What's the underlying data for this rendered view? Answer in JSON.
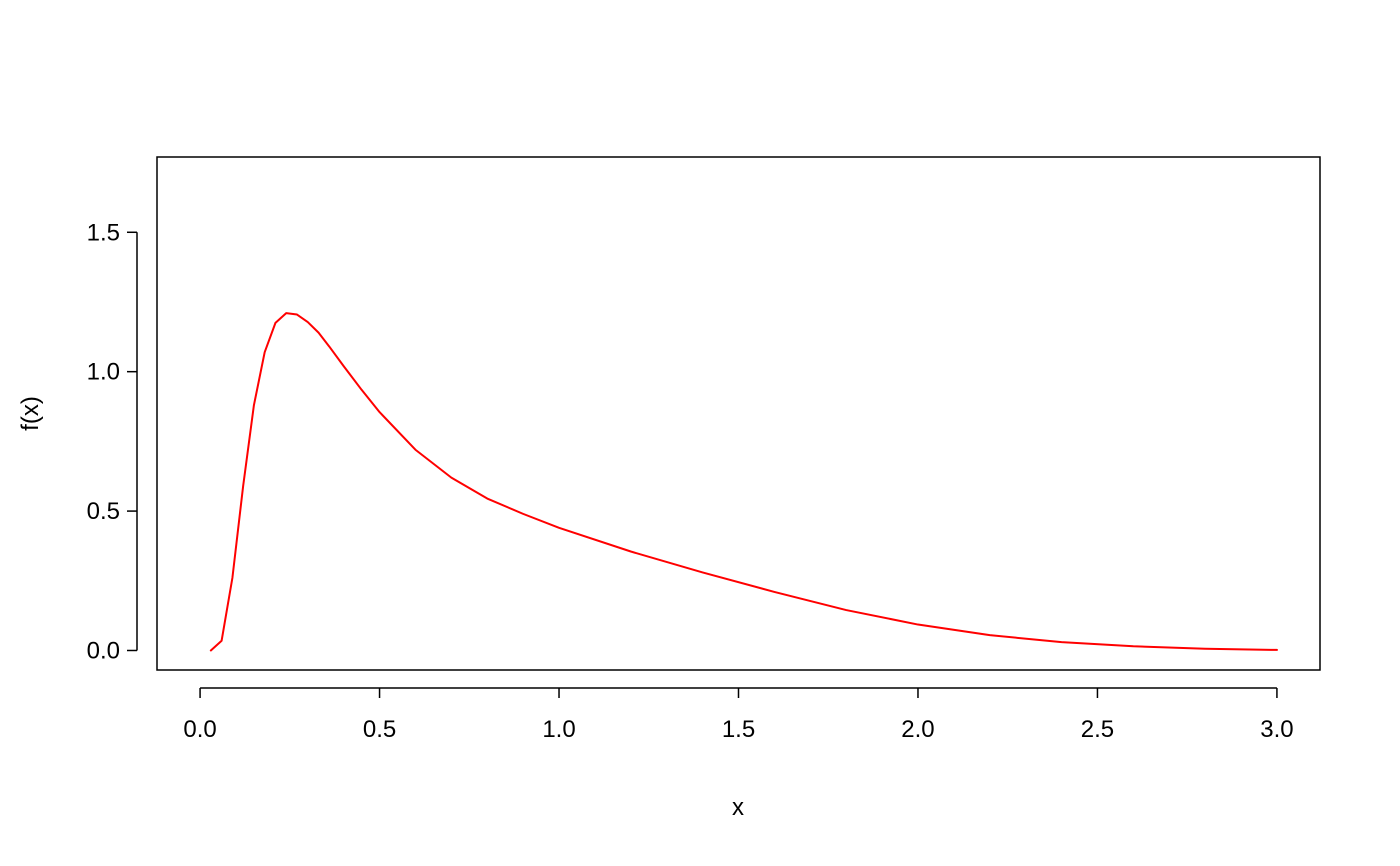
{
  "chart_data": {
    "type": "line",
    "title": "",
    "xlabel": "x",
    "ylabel": "f(x)",
    "xlim": [
      -0.12,
      3.12
    ],
    "ylim": [
      -0.07,
      1.77
    ],
    "xticks": [
      0.0,
      0.5,
      1.0,
      1.5,
      2.0,
      2.5,
      3.0
    ],
    "xtick_labels": [
      "0.0",
      "0.5",
      "1.0",
      "1.5",
      "2.0",
      "2.5",
      "3.0"
    ],
    "yticks": [
      0.0,
      0.5,
      1.0,
      1.5
    ],
    "ytick_labels": [
      "0.0",
      "0.5",
      "1.0",
      "1.5"
    ],
    "grid": false,
    "box": true,
    "series": [
      {
        "color": "#ff0000",
        "x": [
          0.03,
          0.06,
          0.09,
          0.12,
          0.15,
          0.18,
          0.21,
          0.24,
          0.27,
          0.3,
          0.33,
          0.36,
          0.4,
          0.45,
          0.5,
          0.6,
          0.7,
          0.8,
          0.9,
          1.0,
          1.2,
          1.4,
          1.6,
          1.8,
          2.0,
          2.2,
          2.4,
          2.6,
          2.8,
          3.0
        ],
        "y": [
          0.0,
          0.035,
          0.26,
          0.59,
          0.88,
          1.07,
          1.175,
          1.21,
          1.205,
          1.178,
          1.14,
          1.09,
          1.02,
          0.935,
          0.855,
          0.72,
          0.62,
          0.545,
          0.49,
          0.44,
          0.355,
          0.28,
          0.21,
          0.145,
          0.093,
          0.055,
          0.03,
          0.015,
          0.006,
          0.002
        ]
      }
    ]
  }
}
